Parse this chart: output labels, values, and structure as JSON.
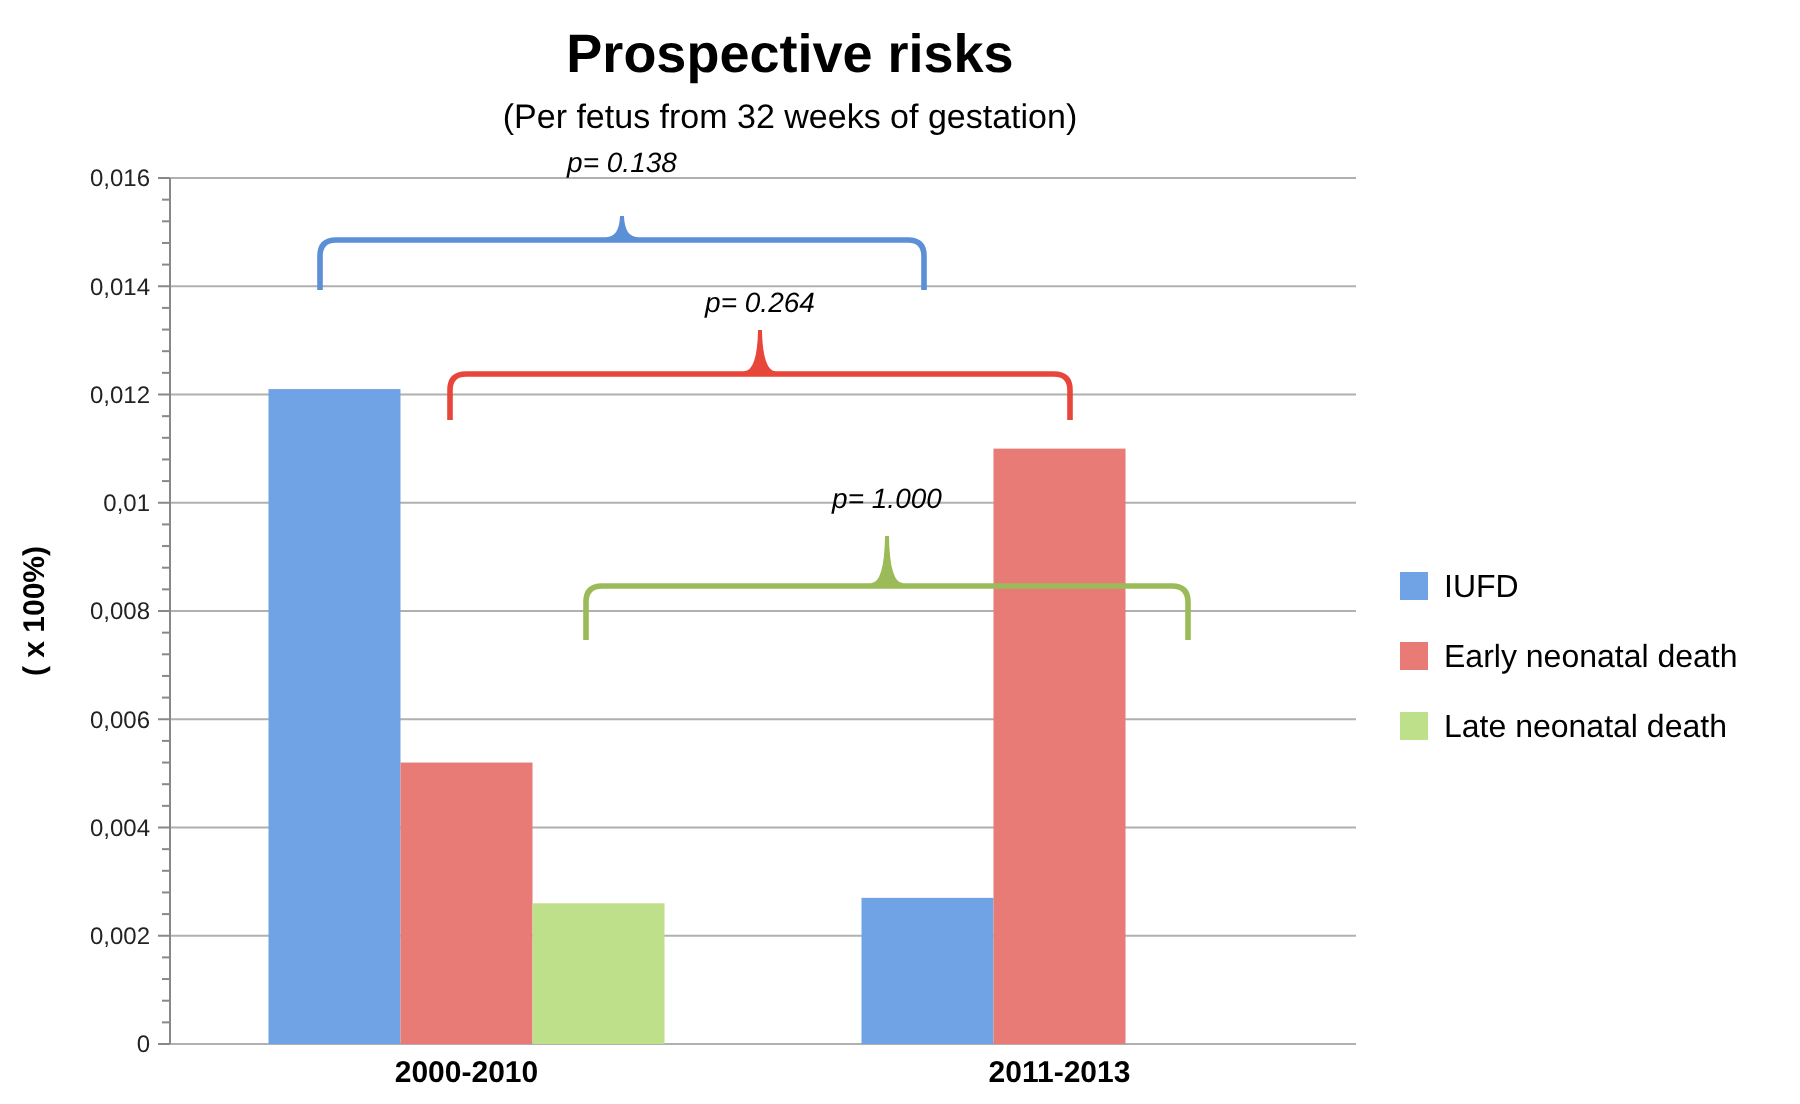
{
  "chart_data": {
    "type": "bar",
    "title": "Prospective risks",
    "subtitle": "(Per fetus from 32 weeks of gestation)",
    "ylabel": "( x 100%)",
    "categories": [
      "2000-2010",
      "2011-2013"
    ],
    "series": [
      {
        "name": "IUFD",
        "color": "#6fa3e6",
        "values": [
          0.0121,
          0.0027
        ]
      },
      {
        "name": "Early neonatal death",
        "color": "#e87b76",
        "values": [
          0.0052,
          0.011
        ]
      },
      {
        "name": "Late neonatal death",
        "color": "#bfe08a",
        "values": [
          0.0026,
          null
        ]
      }
    ],
    "ylim": [
      0,
      0.016
    ],
    "yticks": [
      0,
      {
        "value": 0.0004,
        "label": null
      },
      {
        "value": 0.0008,
        "label": null
      },
      {
        "value": 0.0012,
        "label": null
      },
      {
        "value": 0.0016,
        "label": null
      },
      {
        "value": 0.002,
        "label": "0,002"
      },
      {
        "value": 0.0024,
        "label": null
      },
      {
        "value": 0.0028,
        "label": null
      },
      {
        "value": 0.0032,
        "label": null
      },
      {
        "value": 0.0036,
        "label": null
      },
      {
        "value": 0.004,
        "label": "0,004"
      },
      {
        "value": 0.0044,
        "label": null
      },
      {
        "value": 0.0048,
        "label": null
      },
      {
        "value": 0.0052,
        "label": null
      },
      {
        "value": 0.0056,
        "label": null
      },
      {
        "value": 0.006,
        "label": "0,006"
      },
      {
        "value": 0.0064,
        "label": null
      },
      {
        "value": 0.0068,
        "label": null
      },
      {
        "value": 0.0072,
        "label": null
      },
      {
        "value": 0.0076,
        "label": null
      },
      {
        "value": 0.008,
        "label": "0,008"
      },
      {
        "value": 0.0084,
        "label": null
      },
      {
        "value": 0.0088,
        "label": null
      },
      {
        "value": 0.0092,
        "label": null
      },
      {
        "value": 0.0096,
        "label": null
      },
      {
        "value": 0.01,
        "label": "0,01"
      },
      {
        "value": 0.0104,
        "label": null
      },
      {
        "value": 0.0108,
        "label": null
      },
      {
        "value": 0.0112,
        "label": null
      },
      {
        "value": 0.0116,
        "label": null
      },
      {
        "value": 0.012,
        "label": "0,012"
      },
      {
        "value": 0.0124,
        "label": null
      },
      {
        "value": 0.0128,
        "label": null
      },
      {
        "value": 0.0132,
        "label": null
      },
      {
        "value": 0.0136,
        "label": null
      },
      {
        "value": 0.014,
        "label": "0,014"
      },
      {
        "value": 0.0144,
        "label": null
      },
      {
        "value": 0.0148,
        "label": null
      },
      {
        "value": 0.0152,
        "label": null
      },
      {
        "value": 0.0156,
        "label": null
      },
      {
        "value": 0.016,
        "label": "0,016"
      }
    ],
    "grid": "y",
    "legend": "right",
    "annotations": [
      "p= 0.138",
      "p= 0.264",
      "p= 1.000"
    ]
  }
}
